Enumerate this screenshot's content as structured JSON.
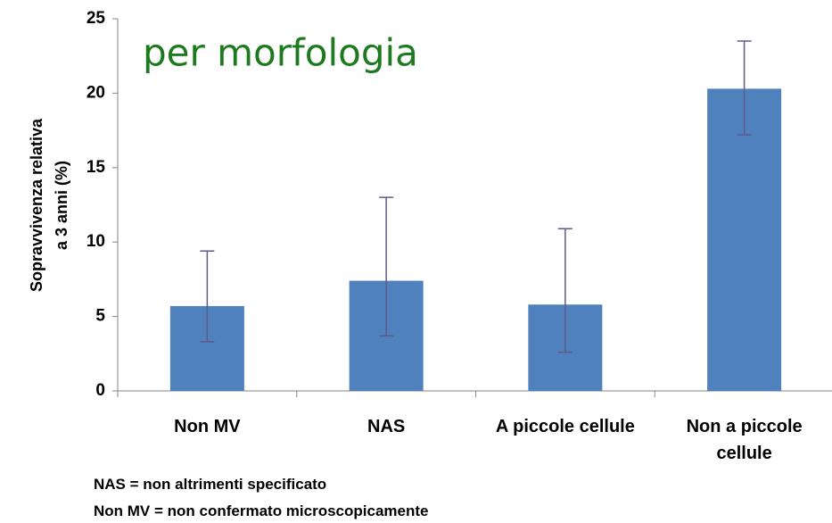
{
  "chart_data": {
    "type": "bar",
    "title": "per morfologia",
    "ylabel": [
      "Sopravvivenza relativa",
      "a 3 anni (%)"
    ],
    "categories": [
      "Non MV",
      "NAS",
      "A piccole cellule",
      "Non a piccole cellule"
    ],
    "values": [
      5.7,
      7.4,
      5.8,
      20.3
    ],
    "error_low": [
      3.3,
      3.7,
      2.6,
      17.2
    ],
    "error_high": [
      9.4,
      13.0,
      10.9,
      23.5
    ],
    "color": "#4f81bd",
    "error_color": "#5f5a8c",
    "title_color": "#1e7a1e",
    "ylim": [
      0,
      25
    ],
    "yticks": [
      0,
      5,
      10,
      15,
      20,
      25
    ],
    "grid": false,
    "notes": [
      "NAS = non altrimenti specificato",
      "Non MV = non confermato microscopicamente"
    ]
  }
}
